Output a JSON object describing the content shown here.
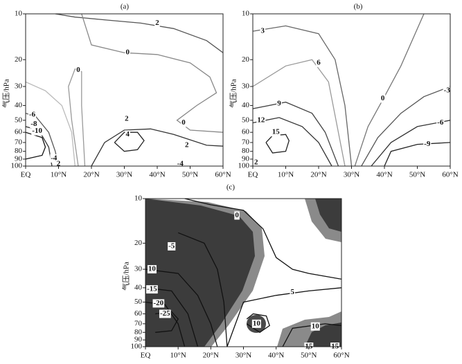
{
  "chart_data": [
    {
      "type": "contour",
      "title": "(a)",
      "y_label": "气压/hPa",
      "log_y": true,
      "xlim": [
        0,
        60
      ],
      "xticks": [
        {
          "value": 0,
          "label": "EQ"
        },
        {
          "value": 10,
          "label": "10°N"
        },
        {
          "value": 20,
          "label": "20°N"
        },
        {
          "value": 30,
          "label": "30°N"
        },
        {
          "value": 40,
          "label": "40°N"
        },
        {
          "value": 50,
          "label": "50°N"
        },
        {
          "value": 60,
          "label": "60°N"
        }
      ],
      "ylim": [
        100,
        10
      ],
      "yticks": [
        10,
        20,
        30,
        40,
        50,
        60,
        70,
        80,
        90,
        100
      ],
      "contours": [
        {
          "color": "#555555",
          "x": [
            9,
            15,
            25,
            35,
            45,
            55,
            60
          ],
          "y": [
            10,
            10.5,
            11,
            11.5,
            12.5,
            15,
            18
          ]
        },
        {
          "color": "#888888",
          "x": [
            17,
            20,
            30,
            40,
            50,
            56,
            58,
            52,
            46,
            50,
            60
          ],
          "y": [
            10,
            16,
            18,
            18.5,
            21,
            26,
            33,
            40,
            50,
            58,
            60
          ]
        },
        {
          "color": "#999999",
          "x": [
            16,
            14,
            13,
            15,
            17,
            17,
            18
          ],
          "y": [
            100,
            50,
            30,
            23,
            24,
            40,
            100
          ]
        },
        {
          "color": "#bbbbbb",
          "x": [
            0,
            6,
            11,
            14,
            15
          ],
          "y": [
            28,
            32,
            40,
            60,
            100
          ]
        },
        {
          "color": "#333333",
          "x": [
            20,
            24,
            30,
            38,
            45,
            55,
            60
          ],
          "y": [
            100,
            70,
            58,
            57,
            62,
            73,
            74
          ]
        },
        {
          "color": "#222222",
          "x": [
            27,
            30,
            34,
            36,
            34,
            30,
            27
          ],
          "y": [
            70,
            60,
            60,
            68,
            78,
            80,
            70
          ]
        },
        {
          "color": "#555555",
          "x": [
            0,
            3,
            7,
            9,
            10
          ],
          "y": [
            45,
            47,
            60,
            80,
            100
          ]
        },
        {
          "color": "#333333",
          "x": [
            0,
            4,
            7,
            8
          ],
          "y": [
            55,
            58,
            75,
            100
          ]
        },
        {
          "color": "#111111",
          "x": [
            0,
            5,
            6,
            5,
            0
          ],
          "y": [
            60,
            65,
            75,
            85,
            90
          ]
        }
      ],
      "contour_labels": [
        {
          "value": 2,
          "x": 40,
          "y": 11.5
        },
        {
          "value": 0,
          "x": 31,
          "y": 18
        },
        {
          "value": 0,
          "x": 16,
          "y": 23.5
        },
        {
          "value": 0,
          "x": 48,
          "y": 52
        },
        {
          "value": 2,
          "x": 30.7,
          "y": 49
        },
        {
          "value": 4,
          "x": 31,
          "y": 62
        },
        {
          "value": 2,
          "x": 49,
          "y": 73
        },
        {
          "value": -6,
          "x": 2,
          "y": 46
        },
        {
          "value": -8,
          "x": 2.5,
          "y": 53
        },
        {
          "value": -10,
          "x": 3.5,
          "y": 59
        },
        {
          "value": -4,
          "x": 8.6,
          "y": 89
        },
        {
          "value": 2,
          "x": 10,
          "y": 97
        },
        {
          "value": -4,
          "x": 47,
          "y": 97
        }
      ]
    },
    {
      "type": "contour",
      "title": "(b)",
      "y_label": "气压/hPa",
      "log_y": true,
      "xlim": [
        0,
        60
      ],
      "xticks": [
        {
          "value": 0,
          "label": "EQ"
        },
        {
          "value": 10,
          "label": "10°N"
        },
        {
          "value": 20,
          "label": "20°N"
        },
        {
          "value": 30,
          "label": "30°N"
        },
        {
          "value": 40,
          "label": "40°N"
        },
        {
          "value": 50,
          "label": "50°N"
        },
        {
          "value": 60,
          "label": "60°N"
        }
      ],
      "ylim": [
        100,
        10
      ],
      "yticks": [
        10,
        20,
        30,
        40,
        50,
        60,
        70,
        80,
        90,
        100
      ],
      "contours": [
        {
          "color": "#666666",
          "x": [
            0,
            10,
            20,
            25,
            28,
            30
          ],
          "y": [
            13,
            12,
            13.5,
            20,
            40,
            100
          ]
        },
        {
          "color": "#999999",
          "x": [
            0,
            10,
            18,
            23,
            26,
            28
          ],
          "y": [
            30,
            22,
            20,
            28,
            60,
            100
          ]
        },
        {
          "color": "#444444",
          "x": [
            0,
            10,
            18,
            22,
            26
          ],
          "y": [
            42,
            38,
            45,
            60,
            100
          ]
        },
        {
          "color": "#333333",
          "x": [
            0,
            8,
            15,
            20,
            24
          ],
          "y": [
            52,
            48,
            55,
            70,
            100
          ]
        },
        {
          "color": "#222222",
          "x": [
            4,
            6,
            10,
            11,
            10,
            6,
            4
          ],
          "y": [
            70,
            63,
            62,
            68,
            80,
            82,
            70
          ]
        },
        {
          "color": "#777777",
          "x": [
            52,
            45,
            40,
            35,
            31
          ],
          "y": [
            10,
            22,
            35,
            55,
            100
          ]
        },
        {
          "color": "#555555",
          "x": [
            60,
            52,
            45,
            38,
            33
          ],
          "y": [
            30,
            35,
            45,
            65,
            100
          ]
        },
        {
          "color": "#333333",
          "x": [
            60,
            50,
            42,
            36
          ],
          "y": [
            50,
            55,
            70,
            100
          ]
        },
        {
          "color": "#222222",
          "x": [
            60,
            50,
            42,
            40
          ],
          "y": [
            70,
            72,
            80,
            100
          ]
        }
      ],
      "contour_labels": [
        {
          "value": 3,
          "x": 3,
          "y": 13
        },
        {
          "value": 6,
          "x": 20,
          "y": 21
        },
        {
          "value": 9,
          "x": 8,
          "y": 39
        },
        {
          "value": 12,
          "x": 2.5,
          "y": 50
        },
        {
          "value": 15,
          "x": 7,
          "y": 60
        },
        {
          "value": 0,
          "x": 39.5,
          "y": 36
        },
        {
          "value": -3,
          "x": 59,
          "y": 32
        },
        {
          "value": -6,
          "x": 57,
          "y": 52
        },
        {
          "value": -9,
          "x": 53,
          "y": 72
        },
        {
          "value": 2,
          "x": 1,
          "y": 95
        }
      ]
    },
    {
      "type": "contour",
      "title": "(c)",
      "y_label": "气压/hPa",
      "log_y": true,
      "xlim": [
        0,
        60
      ],
      "xticks": [
        {
          "value": 0,
          "label": "EQ"
        },
        {
          "value": 10,
          "label": "10°N"
        },
        {
          "value": 20,
          "label": "20°N"
        },
        {
          "value": 30,
          "label": "30°N"
        },
        {
          "value": 40,
          "label": "40°N"
        },
        {
          "value": 50,
          "label": "50°N"
        },
        {
          "value": 60,
          "label": "60°N"
        }
      ],
      "ylim": [
        100,
        10
      ],
      "yticks": [
        10,
        20,
        30,
        40,
        50,
        60,
        70,
        80,
        90,
        100
      ],
      "contours": [
        {
          "color": "#111111",
          "x": [
            12,
            20,
            30,
            36,
            40,
            45,
            50,
            60
          ],
          "y": [
            10,
            11,
            12,
            16,
            25,
            30,
            32,
            35
          ]
        },
        {
          "color": "#111111",
          "x": [
            25,
            30,
            40,
            50,
            60
          ],
          "y": [
            100,
            50,
            45,
            42,
            40
          ]
        },
        {
          "color": "#111111",
          "x": [
            31,
            33,
            37,
            38,
            35,
            31
          ],
          "y": [
            65,
            60,
            62,
            72,
            80,
            70
          ]
        },
        {
          "color": "#111111",
          "x": [
            42,
            45,
            55,
            60
          ],
          "y": [
            100,
            75,
            70,
            72
          ]
        },
        {
          "color": "#111111",
          "x": [
            10,
            18,
            22,
            24,
            25
          ],
          "y": [
            17,
            20,
            30,
            50,
            100
          ]
        },
        {
          "color": "#111111",
          "x": [
            0,
            10,
            16,
            20,
            22
          ],
          "y": [
            30,
            32,
            45,
            70,
            100
          ]
        },
        {
          "color": "#111111",
          "x": [
            0,
            8,
            13,
            16
          ],
          "y": [
            40,
            42,
            60,
            100
          ]
        },
        {
          "color": "#111111",
          "x": [
            0,
            6,
            10,
            12
          ],
          "y": [
            50,
            52,
            70,
            100
          ]
        },
        {
          "color": "#111111",
          "x": [
            3,
            8,
            10,
            8,
            3
          ],
          "y": [
            60,
            58,
            65,
            78,
            80
          ]
        }
      ],
      "contour_labels": [
        {
          "value": 0,
          "x": 28,
          "y": 13
        },
        {
          "value": -5,
          "x": 8,
          "y": 21
        },
        {
          "value": 10,
          "x": 2,
          "y": 30
        },
        {
          "value": -15,
          "x": 2,
          "y": 41
        },
        {
          "value": -20,
          "x": 4,
          "y": 51
        },
        {
          "value": -25,
          "x": 6,
          "y": 60
        },
        {
          "value": 5,
          "x": 45,
          "y": 43
        },
        {
          "value": 10,
          "x": 34,
          "y": 70
        },
        {
          "value": 10,
          "x": 52,
          "y": 73
        },
        {
          "value": 15,
          "x": 50,
          "y": 100
        },
        {
          "value": 15,
          "x": 58,
          "y": 100
        }
      ]
    }
  ]
}
